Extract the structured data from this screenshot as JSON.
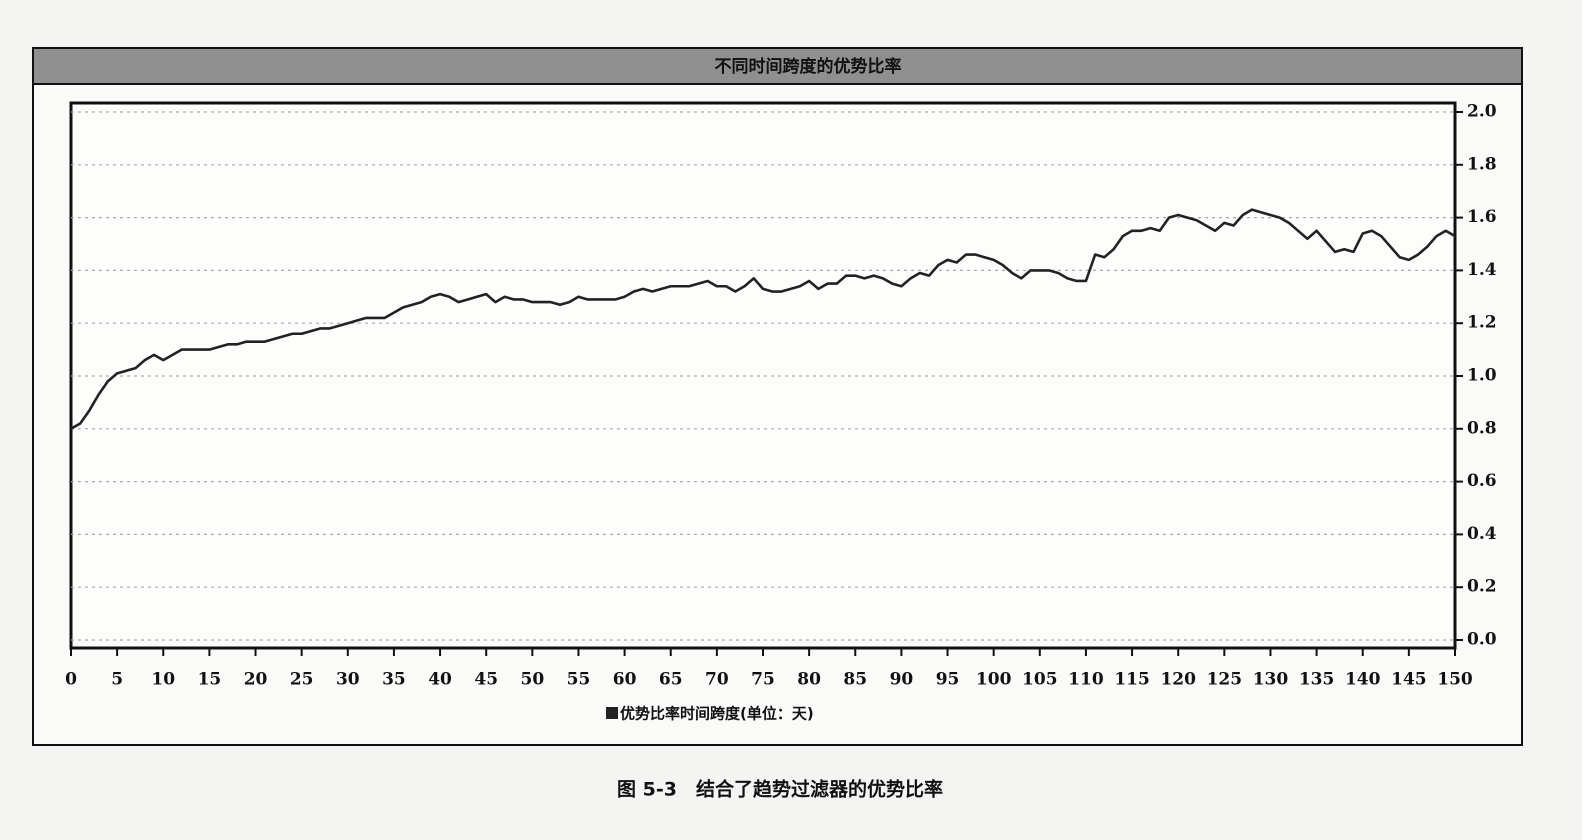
{
  "chart_data": {
    "type": "line",
    "title": "不同时间跨度的优势比率",
    "caption": "图 5-3　结合了趋势过滤器的优势比率",
    "x": [
      0,
      1,
      2,
      3,
      4,
      5,
      6,
      7,
      8,
      9,
      10,
      11,
      12,
      13,
      14,
      15,
      16,
      17,
      18,
      19,
      20,
      21,
      22,
      23,
      24,
      25,
      26,
      27,
      28,
      29,
      30,
      31,
      32,
      33,
      34,
      35,
      36,
      37,
      38,
      39,
      40,
      41,
      42,
      43,
      44,
      45,
      46,
      47,
      48,
      49,
      50,
      51,
      52,
      53,
      54,
      55,
      56,
      57,
      58,
      59,
      60,
      61,
      62,
      63,
      64,
      65,
      66,
      67,
      68,
      69,
      70,
      71,
      72,
      73,
      74,
      75,
      76,
      77,
      78,
      79,
      80,
      81,
      82,
      83,
      84,
      85,
      86,
      87,
      88,
      89,
      90,
      91,
      92,
      93,
      94,
      95,
      96,
      97,
      98,
      99,
      100,
      101,
      102,
      103,
      104,
      105,
      106,
      107,
      108,
      109,
      110,
      111,
      112,
      113,
      114,
      115,
      116,
      117,
      118,
      119,
      120,
      121,
      122,
      123,
      124,
      125,
      126,
      127,
      128,
      129,
      130,
      131,
      132,
      133,
      134,
      135,
      136,
      137,
      138,
      139,
      140,
      141,
      142,
      143,
      144,
      145,
      146,
      147,
      148,
      149,
      150
    ],
    "series": [
      {
        "name": "优势比率时间跨度(单位：天)",
        "color": "#222222",
        "values": [
          0.8,
          0.82,
          0.87,
          0.93,
          0.98,
          1.01,
          1.02,
          1.03,
          1.06,
          1.08,
          1.06,
          1.08,
          1.1,
          1.1,
          1.1,
          1.1,
          1.11,
          1.12,
          1.12,
          1.13,
          1.13,
          1.13,
          1.14,
          1.15,
          1.16,
          1.16,
          1.17,
          1.18,
          1.18,
          1.19,
          1.2,
          1.21,
          1.22,
          1.22,
          1.22,
          1.24,
          1.26,
          1.27,
          1.28,
          1.3,
          1.31,
          1.3,
          1.28,
          1.29,
          1.3,
          1.31,
          1.28,
          1.3,
          1.29,
          1.29,
          1.28,
          1.28,
          1.28,
          1.27,
          1.28,
          1.3,
          1.29,
          1.29,
          1.29,
          1.29,
          1.3,
          1.32,
          1.33,
          1.32,
          1.33,
          1.34,
          1.34,
          1.34,
          1.35,
          1.36,
          1.34,
          1.34,
          1.32,
          1.34,
          1.37,
          1.33,
          1.32,
          1.32,
          1.33,
          1.34,
          1.36,
          1.33,
          1.35,
          1.35,
          1.38,
          1.38,
          1.37,
          1.38,
          1.37,
          1.35,
          1.34,
          1.37,
          1.39,
          1.38,
          1.42,
          1.44,
          1.43,
          1.46,
          1.46,
          1.45,
          1.44,
          1.42,
          1.39,
          1.37,
          1.4,
          1.4,
          1.4,
          1.39,
          1.37,
          1.36,
          1.36,
          1.46,
          1.45,
          1.48,
          1.53,
          1.55,
          1.55,
          1.56,
          1.55,
          1.6,
          1.61,
          1.6,
          1.59,
          1.57,
          1.55,
          1.58,
          1.57,
          1.61,
          1.63,
          1.62,
          1.61,
          1.6,
          1.58,
          1.55,
          1.52,
          1.55,
          1.51,
          1.47,
          1.48,
          1.47,
          1.54,
          1.55,
          1.53,
          1.49,
          1.45,
          1.44,
          1.46,
          1.49,
          1.53,
          1.55,
          1.53
        ]
      }
    ],
    "xlim": [
      0,
      150
    ],
    "xticks": [
      0,
      5,
      10,
      15,
      20,
      25,
      30,
      35,
      40,
      45,
      50,
      55,
      60,
      65,
      70,
      75,
      80,
      85,
      90,
      95,
      100,
      105,
      110,
      115,
      120,
      125,
      130,
      135,
      140,
      145,
      150
    ],
    "ylim": [
      0,
      2
    ],
    "yticks": [
      {
        "value": 0,
        "label": "0.0"
      },
      0.2,
      0.4,
      0.6,
      0.8,
      {
        "value": 1,
        "label": "1.0"
      },
      1.2,
      1.4,
      1.6,
      1.8,
      {
        "value": 2,
        "label": "2.0"
      }
    ],
    "grid": true,
    "legend": "bottom"
  }
}
